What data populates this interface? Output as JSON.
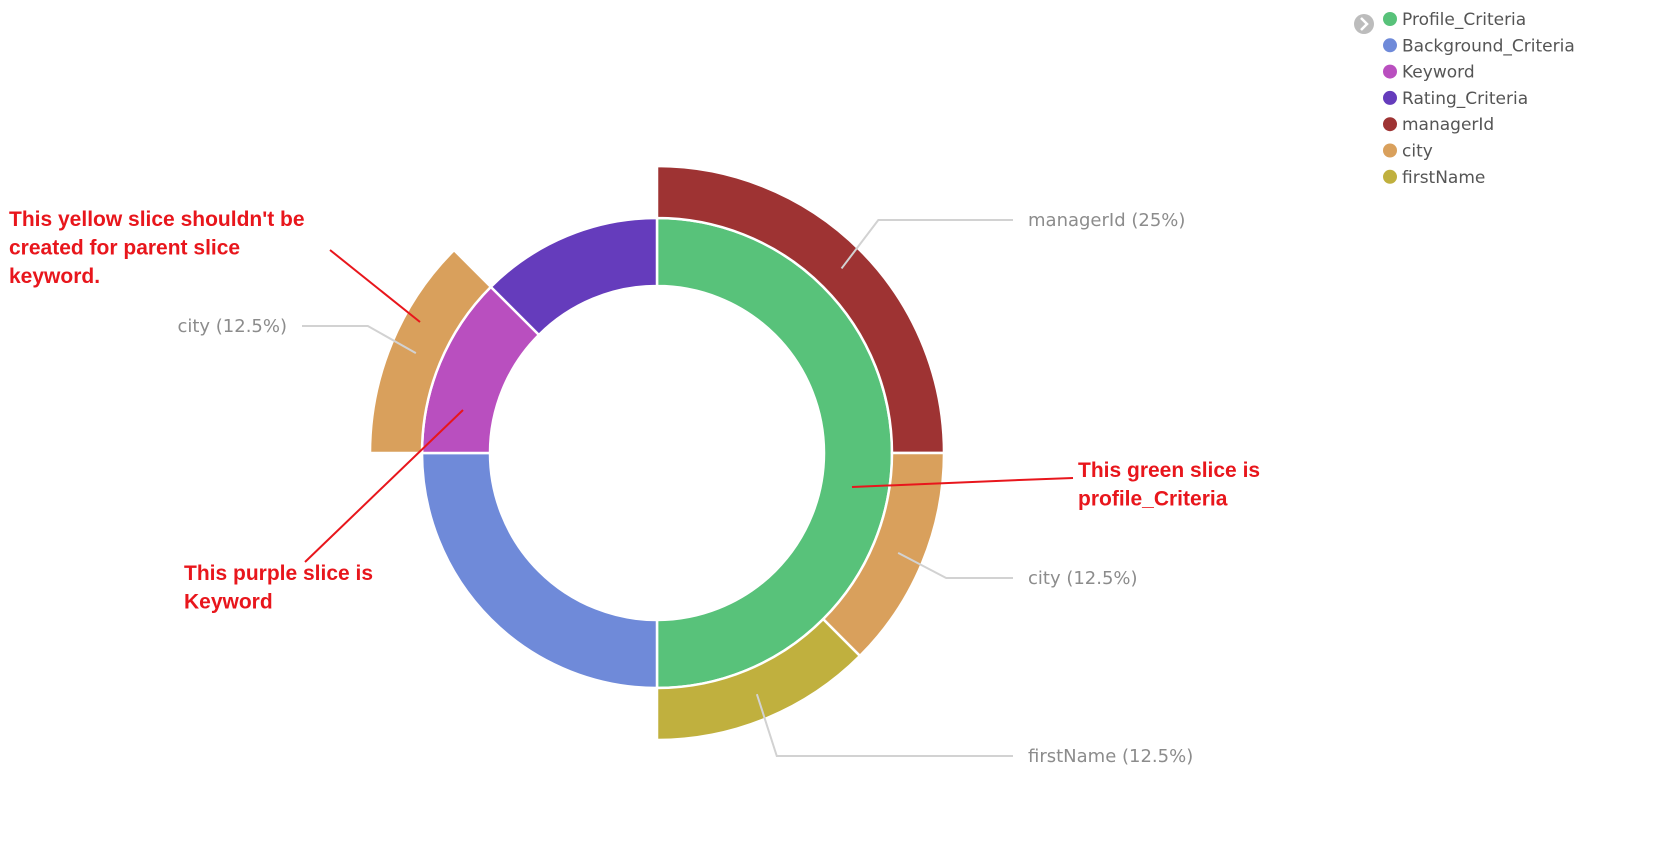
{
  "chart_data": {
    "type": "pie",
    "variant": "sunburst-donut",
    "title": "",
    "inner_ring": [
      {
        "name": "Profile_Criteria",
        "value": 50,
        "color": "#58c27a"
      },
      {
        "name": "Background_Criteria",
        "value": 25,
        "color": "#6f8ad9"
      },
      {
        "name": "Keyword",
        "value": 12.5,
        "color": "#b94fbf"
      },
      {
        "name": "Rating_Criteria",
        "value": 12.5,
        "color": "#653cbc"
      }
    ],
    "outer_ring": [
      {
        "name": "managerId",
        "parent": "Profile_Criteria",
        "value": 25,
        "color": "#9e3333",
        "label": "managerId (25%)"
      },
      {
        "name": "city",
        "parent": "Profile_Criteria",
        "value": 12.5,
        "color": "#d9a05c",
        "label": "city (12.5%)"
      },
      {
        "name": "firstName",
        "parent": "Profile_Criteria",
        "value": 12.5,
        "color": "#c0b03e",
        "label": "firstName (12.5%)"
      },
      {
        "name": "city",
        "parent": "Keyword",
        "value": 12.5,
        "color": "#d9a05c",
        "label": "city (12.5%)"
      }
    ],
    "legend": {
      "placement": "top-right",
      "items": [
        {
          "name": "Profile_Criteria",
          "color": "#58c27a"
        },
        {
          "name": "Background_Criteria",
          "color": "#6f8ad9"
        },
        {
          "name": "Keyword",
          "color": "#b94fbf"
        },
        {
          "name": "Rating_Criteria",
          "color": "#653cbc"
        },
        {
          "name": "managerId",
          "color": "#9e3333"
        },
        {
          "name": "city",
          "color": "#d9a05c"
        },
        {
          "name": "firstName",
          "color": "#c0b03e"
        }
      ]
    },
    "annotations": [
      {
        "id": "yellow-note",
        "lines": [
          "This yellow slice shouldn't be",
          "created for parent slice",
          "keyword."
        ],
        "color": "#e8161c"
      },
      {
        "id": "green-note",
        "lines": [
          "This green slice is",
          "profile_Criteria"
        ],
        "color": "#e8161c"
      },
      {
        "id": "purple-note",
        "lines": [
          "This purple slice is",
          "Keyword"
        ],
        "color": "#e8161c"
      }
    ]
  }
}
